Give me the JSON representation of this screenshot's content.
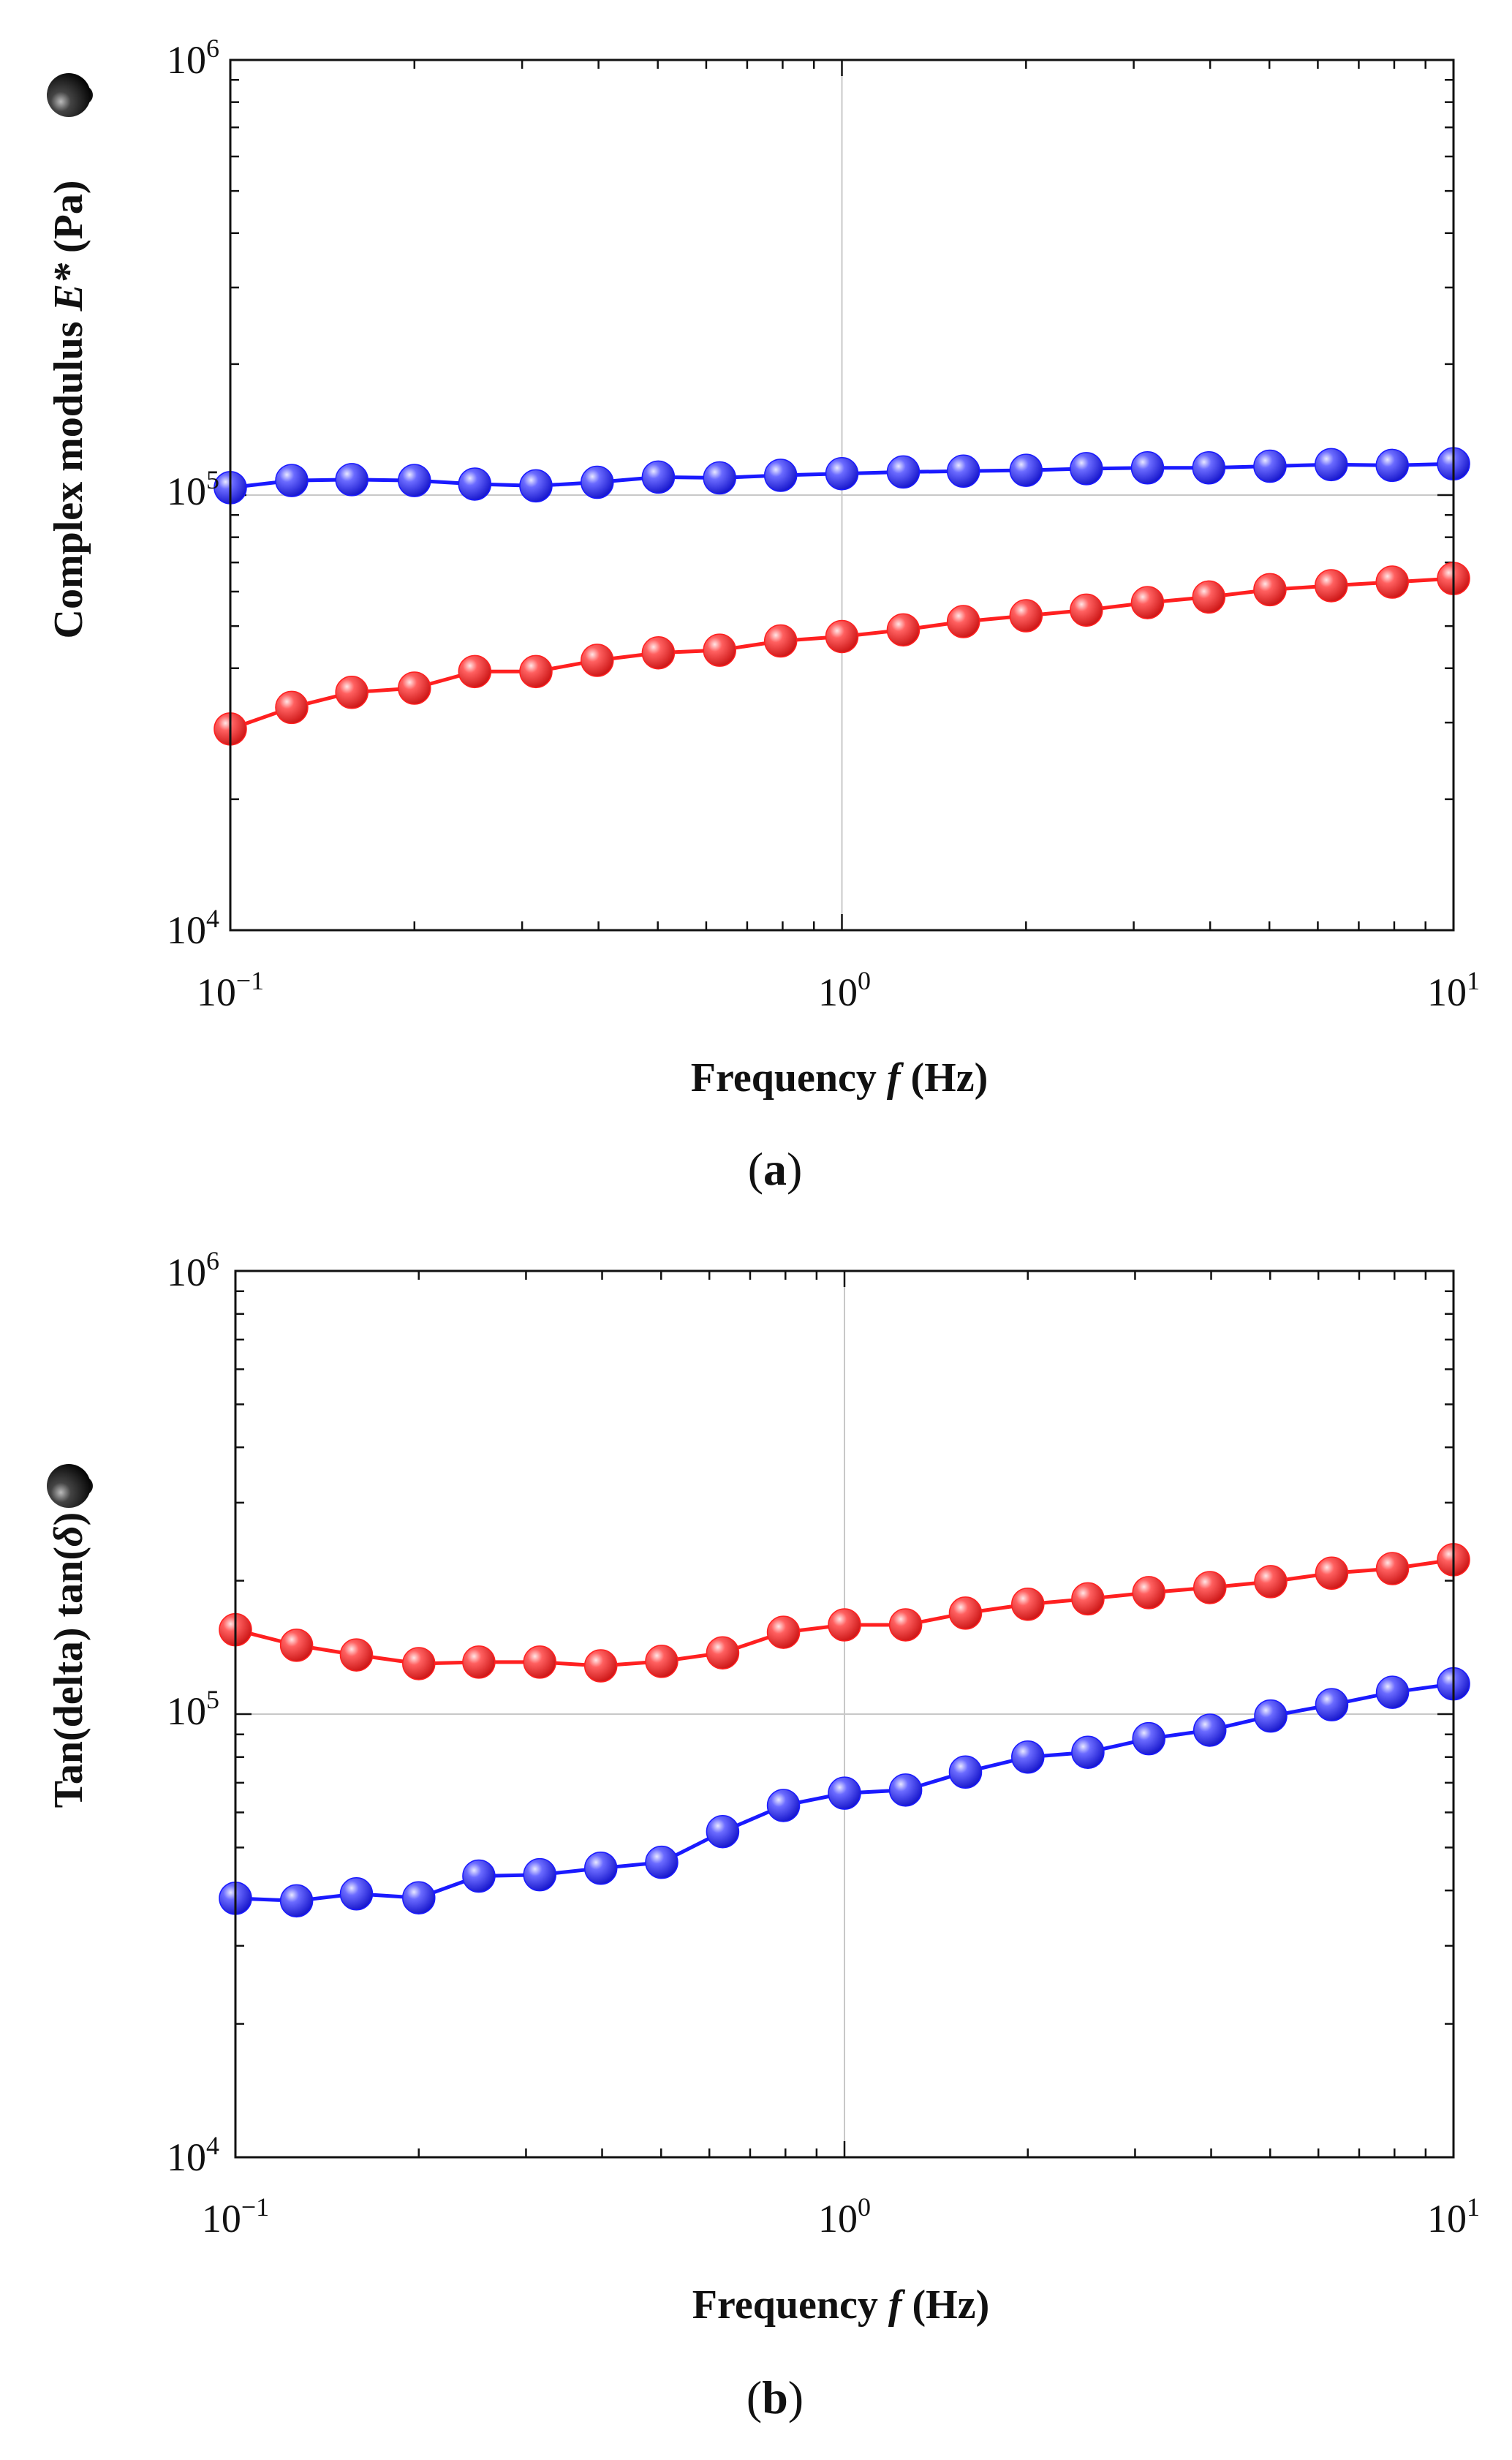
{
  "chart_data": [
    {
      "panel": "a",
      "panel_label": "(a)",
      "panel_letter": "a",
      "type": "line",
      "xscale": "log",
      "yscale": "log",
      "xlim": [
        0.1,
        10
      ],
      "ylim": [
        10000,
        1000000
      ],
      "xlabel": "Frequency f (Hz)",
      "xlabel_main": "Frequency ",
      "xlabel_symbol": "f",
      "xlabel_unit": " (Hz)",
      "ylabel": "Complex modulus E* (Pa)",
      "ylabel_main": "Complex modulus ",
      "ylabel_symbol": "E*",
      "ylabel_unit": " (Pa)",
      "ylabel_marker": "●",
      "x_tick_labels": [
        {
          "base": "10",
          "exp": "−1",
          "value": 0.1
        },
        {
          "base": "10",
          "exp": "0",
          "value": 1
        },
        {
          "base": "10",
          "exp": "1",
          "value": 10
        }
      ],
      "y_tick_labels": [
        {
          "base": "10",
          "exp": "4",
          "value": 10000
        },
        {
          "base": "10",
          "exp": "5",
          "value": 100000
        },
        {
          "base": "10",
          "exp": "6",
          "value": 1000000
        }
      ],
      "grid": true,
      "x": [
        0.1,
        0.126,
        0.158,
        0.2,
        0.251,
        0.316,
        0.398,
        0.501,
        0.631,
        0.794,
        1.0,
        1.26,
        1.58,
        2.0,
        2.51,
        3.16,
        3.98,
        5.01,
        6.31,
        7.94,
        10.0
      ],
      "series": [
        {
          "name": "blue",
          "color": "#1a1aff",
          "values": [
            104000,
            108000,
            108500,
            108000,
            106000,
            105000,
            107000,
            110000,
            109500,
            111000,
            112000,
            113000,
            113500,
            114000,
            115000,
            115500,
            115500,
            116500,
            117500,
            117000,
            118000
          ]
        },
        {
          "name": "red",
          "color": "#ff2020",
          "values": [
            29000,
            32500,
            35200,
            36000,
            39300,
            39300,
            41700,
            43400,
            44000,
            46200,
            47300,
            49000,
            51200,
            52800,
            54400,
            56600,
            58300,
            60600,
            61900,
            63100,
            64300
          ]
        }
      ]
    },
    {
      "panel": "b",
      "panel_label": "(b)",
      "panel_letter": "b",
      "type": "line",
      "xscale": "log",
      "yscale": "log",
      "xlim": [
        0.1,
        10
      ],
      "ylim": [
        10000,
        1000000
      ],
      "xlabel": "Frequency f (Hz)",
      "xlabel_main": "Frequency ",
      "xlabel_symbol": "f",
      "xlabel_unit": " (Hz)",
      "ylabel": "Tan(delta) tan(δ)",
      "ylabel_main": "Tan(delta) tan(",
      "ylabel_symbol": "δ",
      "ylabel_unit": ")",
      "ylabel_marker": "●",
      "x_tick_labels": [
        {
          "base": "10",
          "exp": "−1",
          "value": 0.1
        },
        {
          "base": "10",
          "exp": "0",
          "value": 1
        },
        {
          "base": "10",
          "exp": "1",
          "value": 10
        }
      ],
      "y_tick_labels": [
        {
          "base": "10",
          "exp": "4",
          "value": 10000
        },
        {
          "base": "10",
          "exp": "5",
          "value": 100000
        },
        {
          "base": "10",
          "exp": "6",
          "value": 1000000
        }
      ],
      "grid": true,
      "x": [
        0.1,
        0.126,
        0.158,
        0.2,
        0.251,
        0.316,
        0.398,
        0.501,
        0.631,
        0.794,
        1.0,
        1.26,
        1.58,
        2.0,
        2.51,
        3.16,
        3.98,
        5.01,
        6.31,
        7.94,
        10.0
      ],
      "series": [
        {
          "name": "red",
          "color": "#ff2020",
          "values": [
            155000,
            143000,
            136000,
            130000,
            131000,
            131000,
            128500,
            131500,
            137500,
            153000,
            159000,
            159000,
            169000,
            177000,
            182000,
            188000,
            193000,
            199000,
            208000,
            213000,
            223000
          ]
        },
        {
          "name": "blue",
          "color": "#1a1aff",
          "values": [
            38400,
            37900,
            39300,
            38500,
            43100,
            43400,
            44900,
            46300,
            54300,
            62200,
            66300,
            67400,
            74000,
            80000,
            82000,
            88000,
            92000,
            99000,
            105000,
            112000,
            117000
          ]
        }
      ]
    }
  ]
}
